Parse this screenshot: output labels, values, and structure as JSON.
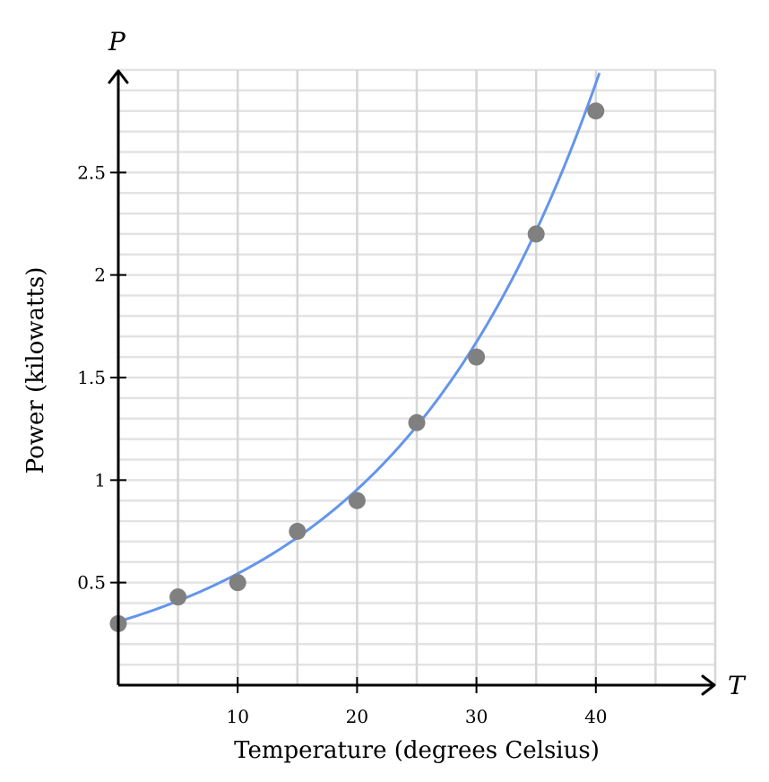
{
  "chart_data": {
    "type": "scatter",
    "title": "",
    "xlabel": "Temperature (degrees Celsius)",
    "ylabel": "Power (kilowatts)",
    "x_var": "T",
    "y_var": "P",
    "xlim": [
      0,
      50
    ],
    "ylim": [
      0,
      3
    ],
    "x_ticks": [
      10,
      20,
      30,
      40
    ],
    "x_tick_labels": [
      "10",
      "20",
      "30",
      "40"
    ],
    "y_ticks": [
      0.5,
      1,
      1.5,
      2,
      2.5
    ],
    "y_tick_labels": [
      "0.5",
      "1",
      "1.5",
      "2",
      "2.5"
    ],
    "grid": true,
    "x_grid_step": 5,
    "y_grid_step": 0.1,
    "series": [
      {
        "type": "scatter",
        "x": [
          0,
          5,
          10,
          15,
          20,
          25,
          30,
          35,
          40
        ],
        "y": [
          0.3,
          0.43,
          0.5,
          0.75,
          0.9,
          1.28,
          1.6,
          2.2,
          2.8
        ],
        "color": "#808080"
      },
      {
        "type": "line",
        "function": "exponential",
        "a": 0.31,
        "b": 0.0562,
        "x_range": [
          0,
          40.3
        ],
        "color": "#6495ed"
      }
    ]
  }
}
